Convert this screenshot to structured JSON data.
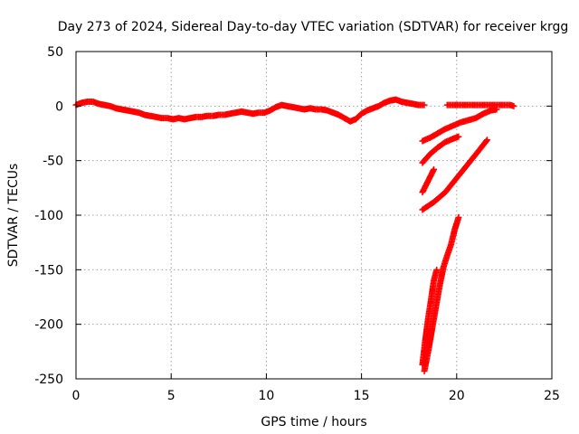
{
  "chart_data": {
    "type": "scatter",
    "title": "Day 273 of 2024, Sidereal Day-to-day VTEC variation (SDTVAR) for receiver krgg",
    "xlabel": "GPS time / hours",
    "ylabel": "SDTVAR / TECUs",
    "xlim": [
      0,
      25
    ],
    "ylim": [
      -250,
      50
    ],
    "xticks": [
      0,
      5,
      10,
      15,
      20,
      25
    ],
    "yticks": [
      50,
      0,
      -50,
      -100,
      -150,
      -200,
      -250
    ],
    "grid": true,
    "marker": "plus",
    "color": "#ff0000",
    "series": [
      {
        "segments": [
          [
            [
              0.0,
              1
            ],
            [
              0.3,
              3
            ],
            [
              0.6,
              4
            ],
            [
              0.9,
              4
            ],
            [
              1.2,
              2
            ],
            [
              1.5,
              1
            ],
            [
              1.8,
              0
            ],
            [
              2.1,
              -2
            ],
            [
              2.4,
              -3
            ],
            [
              2.7,
              -4
            ],
            [
              3.0,
              -5
            ],
            [
              3.3,
              -6
            ],
            [
              3.6,
              -8
            ],
            [
              3.9,
              -9
            ],
            [
              4.2,
              -10
            ],
            [
              4.5,
              -11
            ],
            [
              4.8,
              -11
            ],
            [
              5.1,
              -12
            ],
            [
              5.4,
              -11
            ],
            [
              5.7,
              -12
            ],
            [
              6.0,
              -11
            ],
            [
              6.3,
              -10
            ],
            [
              6.6,
              -10
            ],
            [
              6.9,
              -9
            ],
            [
              7.2,
              -9
            ],
            [
              7.5,
              -8
            ],
            [
              7.8,
              -8
            ],
            [
              8.1,
              -7
            ],
            [
              8.4,
              -6
            ],
            [
              8.7,
              -5
            ],
            [
              9.0,
              -6
            ],
            [
              9.3,
              -7
            ],
            [
              9.6,
              -6
            ],
            [
              9.9,
              -6
            ],
            [
              10.2,
              -4
            ],
            [
              10.5,
              -1
            ],
            [
              10.8,
              1
            ],
            [
              11.1,
              0
            ],
            [
              11.4,
              -1
            ],
            [
              11.7,
              -2
            ],
            [
              12.0,
              -3
            ],
            [
              12.3,
              -2
            ],
            [
              12.6,
              -3
            ],
            [
              12.9,
              -3
            ],
            [
              13.2,
              -4
            ],
            [
              13.5,
              -6
            ],
            [
              13.8,
              -8
            ],
            [
              14.1,
              -11
            ],
            [
              14.4,
              -14
            ],
            [
              14.7,
              -12
            ],
            [
              15.0,
              -7
            ],
            [
              15.3,
              -4
            ],
            [
              15.6,
              -2
            ],
            [
              15.9,
              0
            ],
            [
              16.2,
              3
            ],
            [
              16.5,
              5
            ],
            [
              16.8,
              6
            ],
            [
              17.1,
              4
            ],
            [
              17.4,
              3
            ],
            [
              17.7,
              2
            ],
            [
              18.0,
              1
            ],
            [
              18.3,
              1
            ]
          ],
          [
            [
              19.5,
              1
            ],
            [
              19.8,
              1
            ],
            [
              20.1,
              1
            ],
            [
              20.4,
              1
            ],
            [
              20.7,
              1
            ],
            [
              21.0,
              1
            ],
            [
              21.3,
              1
            ],
            [
              21.6,
              1
            ],
            [
              21.9,
              1
            ],
            [
              22.2,
              1
            ],
            [
              22.5,
              1
            ],
            [
              22.8,
              1
            ],
            [
              23.0,
              0
            ]
          ],
          [
            [
              18.2,
              -32
            ],
            [
              18.6,
              -29
            ],
            [
              19.0,
              -25
            ],
            [
              19.4,
              -21
            ],
            [
              19.8,
              -18
            ],
            [
              20.2,
              -15
            ],
            [
              20.6,
              -13
            ],
            [
              21.0,
              -11
            ],
            [
              21.4,
              -7
            ],
            [
              21.8,
              -4
            ],
            [
              22.1,
              -3
            ]
          ],
          [
            [
              18.2,
              -52
            ],
            [
              18.6,
              -44
            ],
            [
              19.0,
              -38
            ],
            [
              19.4,
              -33
            ],
            [
              19.8,
              -30
            ],
            [
              20.1,
              -28
            ]
          ],
          [
            [
              18.2,
              -79
            ],
            [
              18.4,
              -72
            ],
            [
              18.6,
              -65
            ],
            [
              18.8,
              -58
            ]
          ],
          [
            [
              18.2,
              -95
            ],
            [
              18.8,
              -88
            ],
            [
              19.4,
              -79
            ],
            [
              20.0,
              -66
            ],
            [
              20.6,
              -53
            ],
            [
              21.2,
              -40
            ],
            [
              21.6,
              -31
            ]
          ],
          [
            [
              18.3,
              -243
            ],
            [
              18.5,
              -225
            ],
            [
              18.7,
              -205
            ],
            [
              18.9,
              -185
            ],
            [
              19.1,
              -165
            ],
            [
              19.3,
              -148
            ],
            [
              19.5,
              -137
            ],
            [
              19.7,
              -127
            ],
            [
              19.9,
              -113
            ],
            [
              20.1,
              -102
            ]
          ],
          [
            [
              18.2,
              -237
            ],
            [
              18.35,
              -215
            ],
            [
              18.5,
              -195
            ],
            [
              18.65,
              -178
            ],
            [
              18.8,
              -160
            ],
            [
              18.95,
              -150
            ]
          ]
        ]
      }
    ]
  }
}
